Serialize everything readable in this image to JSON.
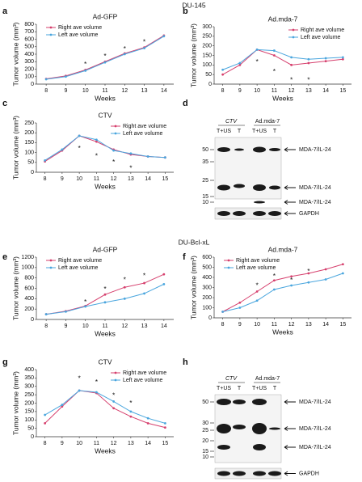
{
  "section_titles": [
    "DU-145",
    "DU-Bcl-xL"
  ],
  "panel_labels": [
    "a",
    "b",
    "c",
    "d",
    "e",
    "f",
    "g",
    "h"
  ],
  "chart_data": [
    {
      "type": "line",
      "title": "Ad-GFP",
      "x_label": "Weeks",
      "y_label": "Tumor volume (mm³)",
      "x": [
        8,
        9,
        10,
        11,
        12,
        13,
        14
      ],
      "xlim": [
        7.5,
        14.5
      ],
      "xticks": [
        8,
        9,
        10,
        11,
        12,
        13,
        14
      ],
      "ylim": [
        0,
        800
      ],
      "yticks": [
        0,
        100,
        200,
        300,
        400,
        500,
        600,
        700,
        800
      ],
      "legend": "upper-left",
      "series": [
        {
          "name": "Right ave volume",
          "color": "#d6406e",
          "values": [
            70,
            110,
            190,
            300,
            410,
            490,
            650
          ]
        },
        {
          "name": "Left ave volume",
          "color": "#4aa6de",
          "values": [
            65,
            100,
            180,
            290,
            400,
            480,
            640
          ]
        }
      ],
      "annotations": [
        {
          "text": "*",
          "x": 10,
          "y": 260
        },
        {
          "text": "*",
          "x": 11,
          "y": 370
        },
        {
          "text": "*",
          "x": 12,
          "y": 470
        },
        {
          "text": "*",
          "x": 13,
          "y": 560
        }
      ]
    },
    {
      "type": "line",
      "title": "Ad.mda-7",
      "x_label": "Weeks",
      "y_label": "Tumor volume (mm³)",
      "x": [
        8,
        9,
        10,
        11,
        12,
        13,
        14,
        15
      ],
      "xlim": [
        7.5,
        15.5
      ],
      "xticks": [
        8,
        9,
        10,
        11,
        12,
        13,
        14,
        15
      ],
      "ylim": [
        0,
        300
      ],
      "yticks": [
        0,
        50,
        100,
        150,
        200,
        250,
        300
      ],
      "legend": "upper-right",
      "series": [
        {
          "name": "Right ave volume",
          "color": "#d6406e",
          "values": [
            50,
            100,
            180,
            150,
            100,
            110,
            120,
            130
          ]
        },
        {
          "name": "Left ave volume",
          "color": "#4aa6de",
          "values": [
            75,
            110,
            180,
            175,
            140,
            130,
            135,
            140
          ]
        }
      ],
      "annotations": [
        {
          "text": "*",
          "x": 10,
          "y": 115
        },
        {
          "text": "*",
          "x": 11,
          "y": 65
        },
        {
          "text": "*",
          "x": 12,
          "y": 20
        },
        {
          "text": "*",
          "x": 13,
          "y": 20
        }
      ]
    },
    {
      "type": "line",
      "title": "CTV",
      "x_label": "Weeks",
      "y_label": "Tumor volume (mm³)",
      "x": [
        8,
        9,
        10,
        11,
        12,
        13,
        14,
        15
      ],
      "xlim": [
        7.5,
        15.5
      ],
      "xticks": [
        8,
        9,
        10,
        11,
        12,
        13,
        14,
        15
      ],
      "ylim": [
        0,
        250
      ],
      "yticks": [
        0,
        50,
        100,
        150,
        200,
        250
      ],
      "legend": "upper-right",
      "series": [
        {
          "name": "Right ave volume",
          "color": "#d6406e",
          "values": [
            55,
            110,
            185,
            155,
            115,
            90,
            80,
            75
          ]
        },
        {
          "name": "Left ave volume",
          "color": "#4aa6de",
          "values": [
            60,
            115,
            185,
            165,
            110,
            95,
            80,
            75
          ]
        }
      ],
      "annotations": [
        {
          "text": "*",
          "x": 10,
          "y": 120
        },
        {
          "text": "*",
          "x": 11,
          "y": 80
        },
        {
          "text": "*",
          "x": 12,
          "y": 50
        },
        {
          "text": "*",
          "x": 13,
          "y": 20
        }
      ]
    },
    {
      "type": "line",
      "title": "Ad-GFP",
      "x_label": "Weeks",
      "y_label": "Tumor volume (mm³)",
      "x": [
        8,
        9,
        10,
        11,
        12,
        13,
        14
      ],
      "xlim": [
        7.5,
        14.5
      ],
      "xticks": [
        8,
        9,
        10,
        11,
        12,
        13,
        14
      ],
      "ylim": [
        0,
        1200
      ],
      "yticks": [
        0,
        200,
        400,
        600,
        800,
        1000,
        1200
      ],
      "legend": "upper-left",
      "series": [
        {
          "name": "Right ave volume",
          "color": "#d6406e",
          "values": [
            100,
            160,
            260,
            480,
            620,
            700,
            870
          ]
        },
        {
          "name": "Left ave volume",
          "color": "#4aa6de",
          "values": [
            100,
            150,
            250,
            330,
            400,
            500,
            680
          ]
        }
      ],
      "annotations": [
        {
          "text": "*",
          "x": 10,
          "y": 330
        },
        {
          "text": "*",
          "x": 11,
          "y": 580
        },
        {
          "text": "*",
          "x": 12,
          "y": 760
        },
        {
          "text": "*",
          "x": 13,
          "y": 840
        }
      ]
    },
    {
      "type": "line",
      "title": "Ad.mda-7",
      "x_label": "Weeks",
      "y_label": "Tumor volume (mm³)",
      "x": [
        8,
        9,
        10,
        11,
        12,
        13,
        14,
        15
      ],
      "xlim": [
        7.5,
        15.5
      ],
      "xticks": [
        8,
        9,
        10,
        11,
        12,
        13,
        14,
        15
      ],
      "ylim": [
        0,
        600
      ],
      "yticks": [
        0,
        100,
        200,
        300,
        400,
        500,
        600
      ],
      "legend": "upper-left",
      "series": [
        {
          "name": "Right ave volume",
          "color": "#d6406e",
          "values": [
            60,
            150,
            260,
            370,
            410,
            440,
            480,
            530
          ]
        },
        {
          "name": "Left ave volume",
          "color": "#4aa6de",
          "values": [
            60,
            100,
            170,
            280,
            320,
            350,
            380,
            440
          ]
        }
      ],
      "annotations": [
        {
          "text": "*",
          "x": 10,
          "y": 320
        },
        {
          "text": "*",
          "x": 11,
          "y": 410
        },
        {
          "text": "*",
          "x": 12,
          "y": 370
        },
        {
          "text": "*",
          "x": 13,
          "y": 460
        }
      ]
    },
    {
      "type": "line",
      "title": "CTV",
      "x_label": "Weeks",
      "y_label": "Tumor volume (mm³)",
      "x": [
        8,
        9,
        10,
        11,
        12,
        13,
        14,
        15
      ],
      "xlim": [
        7.5,
        15.5
      ],
      "xticks": [
        8,
        9,
        10,
        11,
        12,
        13,
        14,
        15
      ],
      "ylim": [
        0,
        400
      ],
      "yticks": [
        0,
        50,
        100,
        150,
        200,
        250,
        300,
        350,
        400
      ],
      "legend": "upper-right",
      "series": [
        {
          "name": "Right ave volume",
          "color": "#d6406e",
          "values": [
            80,
            180,
            275,
            260,
            170,
            120,
            80,
            55
          ]
        },
        {
          "name": "Left ave volume",
          "color": "#4aa6de",
          "values": [
            130,
            190,
            275,
            265,
            210,
            150,
            110,
            80
          ]
        }
      ],
      "annotations": [
        {
          "text": "*",
          "x": 10,
          "y": 345
        },
        {
          "text": "*",
          "x": 11,
          "y": 325
        },
        {
          "text": "*",
          "x": 12,
          "y": 245
        },
        {
          "text": "*",
          "x": 13,
          "y": 200
        }
      ]
    }
  ],
  "blots": [
    {
      "group_labels": [
        "CTV",
        "Ad.mda-7"
      ],
      "lane_labels": [
        "T+US",
        "T",
        "T+US",
        "T"
      ],
      "marker_labels": [
        "50",
        "35",
        "25",
        "15",
        "10"
      ],
      "band_labels": [
        "MDA-7/IL-24",
        "MDA-7/IL-24",
        "MDA-7/IL-24"
      ],
      "loading_label": "GAPDH"
    },
    {
      "group_labels": [
        "CTV",
        "Ad.mda-7"
      ],
      "lane_labels": [
        "T+US",
        "T",
        "T+US",
        "T"
      ],
      "marker_labels": [
        "50",
        "30",
        "25",
        "20",
        "15",
        "10"
      ],
      "band_labels": [
        "MDA-7/IL-24",
        "MDA-7/IL-24",
        "MDA-7/IL-24"
      ],
      "loading_label": "GAPDH"
    }
  ]
}
